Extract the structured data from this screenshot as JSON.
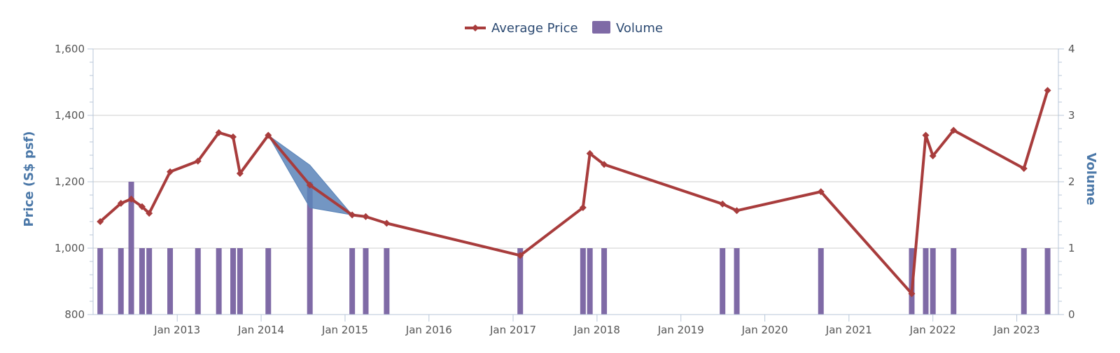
{
  "chart_data": {
    "type": "bar-line-combo",
    "legend": {
      "placement": "top-center",
      "items": [
        {
          "label": "Average Price",
          "kind": "line"
        },
        {
          "label": "Volume",
          "kind": "bar"
        }
      ]
    },
    "colors": {
      "price_line": "#a83c3c",
      "volume_bar": "#7f6aa6",
      "range_band": "#5b84b8",
      "grid": "#cccccc",
      "axis": "#b8c7d9",
      "axis_title": "#4b78a8"
    },
    "x_axis": {
      "type": "date",
      "range": [
        "2012-01-01",
        "2023-07-01"
      ],
      "ticks": [
        "2013-01-01",
        "2014-01-01",
        "2015-01-01",
        "2016-01-01",
        "2017-01-01",
        "2018-01-01",
        "2019-01-01",
        "2020-01-01",
        "2021-01-01",
        "2022-01-01",
        "2023-01-01"
      ],
      "tick_labels": [
        "Jan 2013",
        "Jan 2014",
        "Jan 2015",
        "Jan 2016",
        "Jan 2017",
        "Jan 2018",
        "Jan 2019",
        "Jan 2020",
        "Jan 2021",
        "Jan 2022",
        "Jan 2023"
      ]
    },
    "y_axis_left": {
      "title": "Price (S$ psf)",
      "range": [
        800,
        1600
      ],
      "ticks": [
        800,
        1000,
        1200,
        1400,
        1600
      ],
      "tick_labels": [
        "800",
        "1,000",
        "1,200",
        "1,400",
        "1,600"
      ],
      "grid": true
    },
    "y_axis_right": {
      "title": "Volume",
      "range": [
        0,
        4
      ],
      "ticks": [
        0,
        1,
        2,
        3,
        4
      ],
      "tick_labels": [
        "0",
        "1",
        "2",
        "3",
        "4"
      ]
    },
    "average_price": [
      {
        "x": "2012-02-01",
        "y": 1080
      },
      {
        "x": "2012-05-01",
        "y": 1135
      },
      {
        "x": "2012-06-15",
        "y": 1148
      },
      {
        "x": "2012-08-01",
        "y": 1125
      },
      {
        "x": "2012-09-01",
        "y": 1105
      },
      {
        "x": "2012-12-01",
        "y": 1230
      },
      {
        "x": "2013-04-01",
        "y": 1262
      },
      {
        "x": "2013-07-01",
        "y": 1348
      },
      {
        "x": "2013-09-01",
        "y": 1335
      },
      {
        "x": "2013-10-01",
        "y": 1225
      },
      {
        "x": "2014-02-01",
        "y": 1340
      },
      {
        "x": "2014-08-01",
        "y": 1190
      },
      {
        "x": "2015-02-01",
        "y": 1100
      },
      {
        "x": "2015-04-01",
        "y": 1095
      },
      {
        "x": "2015-07-01",
        "y": 1075
      },
      {
        "x": "2017-02-01",
        "y": 978
      },
      {
        "x": "2017-11-01",
        "y": 1122
      },
      {
        "x": "2017-12-01",
        "y": 1285
      },
      {
        "x": "2018-02-01",
        "y": 1252
      },
      {
        "x": "2019-07-01",
        "y": 1133
      },
      {
        "x": "2019-09-01",
        "y": 1113
      },
      {
        "x": "2020-09-01",
        "y": 1170
      },
      {
        "x": "2021-10-01",
        "y": 863
      },
      {
        "x": "2021-12-01",
        "y": 1340
      },
      {
        "x": "2022-01-01",
        "y": 1278
      },
      {
        "x": "2022-04-01",
        "y": 1355
      },
      {
        "x": "2023-02-01",
        "y": 1240
      },
      {
        "x": "2023-05-15",
        "y": 1475
      }
    ],
    "price_range_band": [
      {
        "x": "2014-02-01",
        "low": 1340,
        "high": 1340
      },
      {
        "x": "2014-08-01",
        "low": 1122,
        "high": 1250
      },
      {
        "x": "2015-02-01",
        "low": 1100,
        "high": 1100
      }
    ],
    "volume": [
      {
        "x": "2012-02-01",
        "y": 1
      },
      {
        "x": "2012-05-01",
        "y": 1
      },
      {
        "x": "2012-06-15",
        "y": 2
      },
      {
        "x": "2012-08-01",
        "y": 1
      },
      {
        "x": "2012-09-01",
        "y": 1
      },
      {
        "x": "2012-12-01",
        "y": 1
      },
      {
        "x": "2013-04-01",
        "y": 1
      },
      {
        "x": "2013-07-01",
        "y": 1
      },
      {
        "x": "2013-09-01",
        "y": 1
      },
      {
        "x": "2013-10-01",
        "y": 1
      },
      {
        "x": "2014-02-01",
        "y": 1
      },
      {
        "x": "2014-08-01",
        "y": 2
      },
      {
        "x": "2015-02-01",
        "y": 1
      },
      {
        "x": "2015-04-01",
        "y": 1
      },
      {
        "x": "2015-07-01",
        "y": 1
      },
      {
        "x": "2017-02-01",
        "y": 1
      },
      {
        "x": "2017-11-01",
        "y": 1
      },
      {
        "x": "2017-12-01",
        "y": 1
      },
      {
        "x": "2018-02-01",
        "y": 1
      },
      {
        "x": "2019-07-01",
        "y": 1
      },
      {
        "x": "2019-09-01",
        "y": 1
      },
      {
        "x": "2020-09-01",
        "y": 1
      },
      {
        "x": "2021-10-01",
        "y": 1
      },
      {
        "x": "2021-12-01",
        "y": 1
      },
      {
        "x": "2022-01-01",
        "y": 1
      },
      {
        "x": "2022-04-01",
        "y": 1
      },
      {
        "x": "2023-02-01",
        "y": 1
      },
      {
        "x": "2023-05-15",
        "y": 1
      }
    ]
  }
}
